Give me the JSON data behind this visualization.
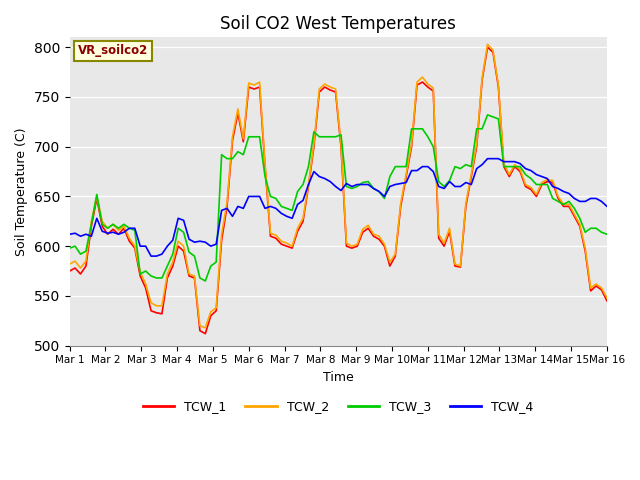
{
  "title": "Soil CO2 West Temperatures",
  "xlabel": "Time",
  "ylabel": "Soil Temperature (C)",
  "annotation": "VR_soilco2",
  "ylim": [
    500,
    810
  ],
  "yticks": [
    500,
    550,
    600,
    650,
    700,
    750,
    800
  ],
  "xtick_labels": [
    "Mar 1",
    "Mar 2",
    "Mar 3",
    "Mar 4",
    "Mar 5",
    "Mar 6",
    "Mar 7",
    "Mar 8",
    "Mar 9",
    "Mar 10",
    "Mar 11",
    "Mar 12",
    "Mar 13",
    "Mar 14",
    "Mar 15",
    "Mar 16"
  ],
  "colors": {
    "TCW_1": "#ff0000",
    "TCW_2": "#ffa500",
    "TCW_3": "#00cc00",
    "TCW_4": "#0000ff"
  },
  "bg_color": "#e8e8e8",
  "legend_colors": [
    "#ff0000",
    "#ffa500",
    "#00cc00",
    "#0000ff"
  ],
  "legend_labels": [
    "TCW_1",
    "TCW_2",
    "TCW_3",
    "TCW_4"
  ],
  "tcw1": [
    575,
    578,
    572,
    580,
    620,
    648,
    620,
    612,
    617,
    612,
    618,
    605,
    598,
    570,
    558,
    535,
    533,
    532,
    568,
    580,
    600,
    595,
    570,
    568,
    515,
    512,
    530,
    535,
    606,
    640,
    706,
    734,
    705,
    760,
    758,
    760,
    680,
    610,
    608,
    602,
    600,
    598,
    615,
    625,
    660,
    700,
    755,
    760,
    757,
    755,
    700,
    600,
    598,
    600,
    614,
    618,
    610,
    607,
    600,
    580,
    590,
    640,
    670,
    700,
    762,
    765,
    760,
    756,
    608,
    600,
    615,
    580,
    579,
    640,
    670,
    700,
    767,
    800,
    795,
    760,
    680,
    670,
    680,
    675,
    660,
    657,
    650,
    662,
    665,
    664,
    648,
    640,
    640,
    630,
    620,
    595,
    555,
    560,
    556,
    545
  ],
  "tcw2": [
    582,
    585,
    578,
    585,
    625,
    650,
    625,
    618,
    622,
    616,
    620,
    608,
    600,
    574,
    562,
    543,
    540,
    540,
    572,
    584,
    605,
    600,
    572,
    570,
    520,
    518,
    534,
    538,
    612,
    644,
    710,
    738,
    708,
    764,
    762,
    765,
    683,
    613,
    611,
    605,
    603,
    600,
    618,
    628,
    662,
    703,
    758,
    763,
    760,
    758,
    703,
    603,
    600,
    602,
    617,
    621,
    612,
    610,
    602,
    584,
    592,
    643,
    672,
    703,
    765,
    770,
    763,
    759,
    612,
    603,
    618,
    582,
    580,
    643,
    672,
    703,
    769,
    803,
    797,
    762,
    683,
    672,
    682,
    677,
    662,
    659,
    652,
    664,
    667,
    666,
    650,
    642,
    642,
    632,
    622,
    598,
    558,
    562,
    558,
    548
  ],
  "tcw3": [
    598,
    600,
    592,
    595,
    622,
    652,
    622,
    618,
    622,
    618,
    622,
    618,
    616,
    572,
    575,
    570,
    568,
    568,
    580,
    592,
    618,
    614,
    594,
    590,
    568,
    565,
    580,
    584,
    692,
    688,
    688,
    695,
    692,
    710,
    710,
    710,
    670,
    650,
    648,
    640,
    638,
    636,
    655,
    662,
    680,
    715,
    710,
    710,
    710,
    710,
    712,
    660,
    658,
    660,
    664,
    665,
    658,
    655,
    648,
    670,
    680,
    680,
    680,
    718,
    718,
    718,
    710,
    700,
    665,
    660,
    666,
    680,
    678,
    682,
    680,
    718,
    718,
    732,
    730,
    728,
    680,
    680,
    680,
    680,
    672,
    668,
    662,
    662,
    662,
    648,
    645,
    642,
    645,
    638,
    628,
    614,
    618,
    618,
    614,
    612
  ],
  "tcw4": [
    612,
    613,
    610,
    612,
    610,
    628,
    615,
    613,
    614,
    612,
    614,
    618,
    618,
    600,
    600,
    590,
    590,
    592,
    600,
    606,
    628,
    626,
    607,
    604,
    605,
    604,
    600,
    602,
    636,
    638,
    630,
    640,
    638,
    650,
    650,
    650,
    638,
    640,
    638,
    633,
    630,
    628,
    642,
    646,
    662,
    675,
    670,
    668,
    665,
    660,
    656,
    663,
    660,
    662,
    662,
    662,
    658,
    655,
    650,
    660,
    662,
    663,
    664,
    676,
    676,
    680,
    680,
    675,
    660,
    658,
    665,
    660,
    660,
    664,
    662,
    678,
    682,
    688,
    688,
    688,
    685,
    685,
    685,
    683,
    678,
    676,
    672,
    670,
    668,
    660,
    658,
    655,
    653,
    648,
    645,
    645,
    648,
    648,
    645,
    640
  ]
}
